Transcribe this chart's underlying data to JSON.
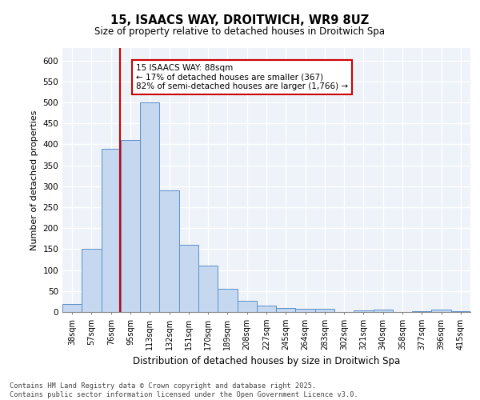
{
  "title1": "15, ISAACS WAY, DROITWICH, WR9 8UZ",
  "title2": "Size of property relative to detached houses in Droitwich Spa",
  "xlabel": "Distribution of detached houses by size in Droitwich Spa",
  "ylabel": "Number of detached properties",
  "categories": [
    "38sqm",
    "57sqm",
    "76sqm",
    "95sqm",
    "113sqm",
    "132sqm",
    "151sqm",
    "170sqm",
    "189sqm",
    "208sqm",
    "227sqm",
    "245sqm",
    "264sqm",
    "283sqm",
    "302sqm",
    "321sqm",
    "340sqm",
    "358sqm",
    "377sqm",
    "396sqm",
    "415sqm"
  ],
  "values": [
    20,
    150,
    390,
    410,
    500,
    290,
    160,
    110,
    55,
    27,
    15,
    10,
    8,
    8,
    0,
    3,
    5,
    0,
    2,
    5,
    2
  ],
  "bar_color": "#c5d8f0",
  "bar_edge_color": "#5b8fc9",
  "vline_color": "#cc0000",
  "annotation_text": "15 ISAACS WAY: 88sqm\n← 17% of detached houses are smaller (367)\n82% of semi-detached houses are larger (1,766) →",
  "annotation_box_color": "white",
  "annotation_box_edge_color": "#cc0000",
  "ylim": [
    0,
    630
  ],
  "yticks": [
    0,
    50,
    100,
    150,
    200,
    250,
    300,
    350,
    400,
    450,
    500,
    550,
    600
  ],
  "footer_line1": "Contains HM Land Registry data © Crown copyright and database right 2025.",
  "footer_line2": "Contains public sector information licensed under the Open Government Licence v3.0.",
  "bg_color": "#eef2f9",
  "grid_color": "white"
}
